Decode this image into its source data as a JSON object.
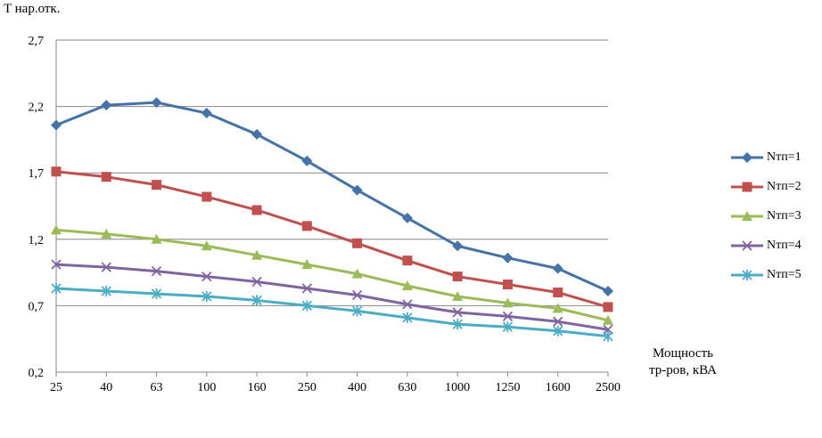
{
  "chart_data": {
    "type": "line",
    "title": "",
    "ylabel": "T нар.отк.",
    "xlabel": "Мощность\nтр-ров, кВА",
    "categories": [
      "25",
      "40",
      "63",
      "100",
      "160",
      "250",
      "400",
      "630",
      "1000",
      "1250",
      "1600",
      "2500"
    ],
    "yticks": [
      "0,2",
      "0,7",
      "1,2",
      "1,7",
      "2,2",
      "2,7"
    ],
    "ylim": [
      0.2,
      2.7
    ],
    "grid": "horizontal",
    "legend_position": "right",
    "series": [
      {
        "name": "Nтп=1",
        "color": "#4572a7",
        "marker": "diamond",
        "values": [
          2.06,
          2.21,
          2.23,
          2.15,
          1.99,
          1.79,
          1.57,
          1.36,
          1.15,
          1.06,
          0.98,
          0.81
        ]
      },
      {
        "name": "Nтп=2",
        "color": "#c0504d",
        "marker": "square",
        "values": [
          1.71,
          1.67,
          1.61,
          1.52,
          1.42,
          1.3,
          1.17,
          1.04,
          0.92,
          0.86,
          0.8,
          0.69
        ]
      },
      {
        "name": "Nтп=3",
        "color": "#9bbb59",
        "marker": "triangle",
        "values": [
          1.27,
          1.24,
          1.2,
          1.15,
          1.08,
          1.01,
          0.94,
          0.85,
          0.77,
          0.72,
          0.68,
          0.59
        ]
      },
      {
        "name": "Nтп=4",
        "color": "#8064a2",
        "marker": "x",
        "values": [
          1.01,
          0.99,
          0.96,
          0.92,
          0.88,
          0.83,
          0.78,
          0.71,
          0.65,
          0.62,
          0.58,
          0.52
        ]
      },
      {
        "name": "Nтп=5",
        "color": "#4bacc6",
        "marker": "star",
        "values": [
          0.83,
          0.81,
          0.79,
          0.77,
          0.74,
          0.7,
          0.66,
          0.61,
          0.56,
          0.54,
          0.51,
          0.47
        ]
      }
    ]
  }
}
